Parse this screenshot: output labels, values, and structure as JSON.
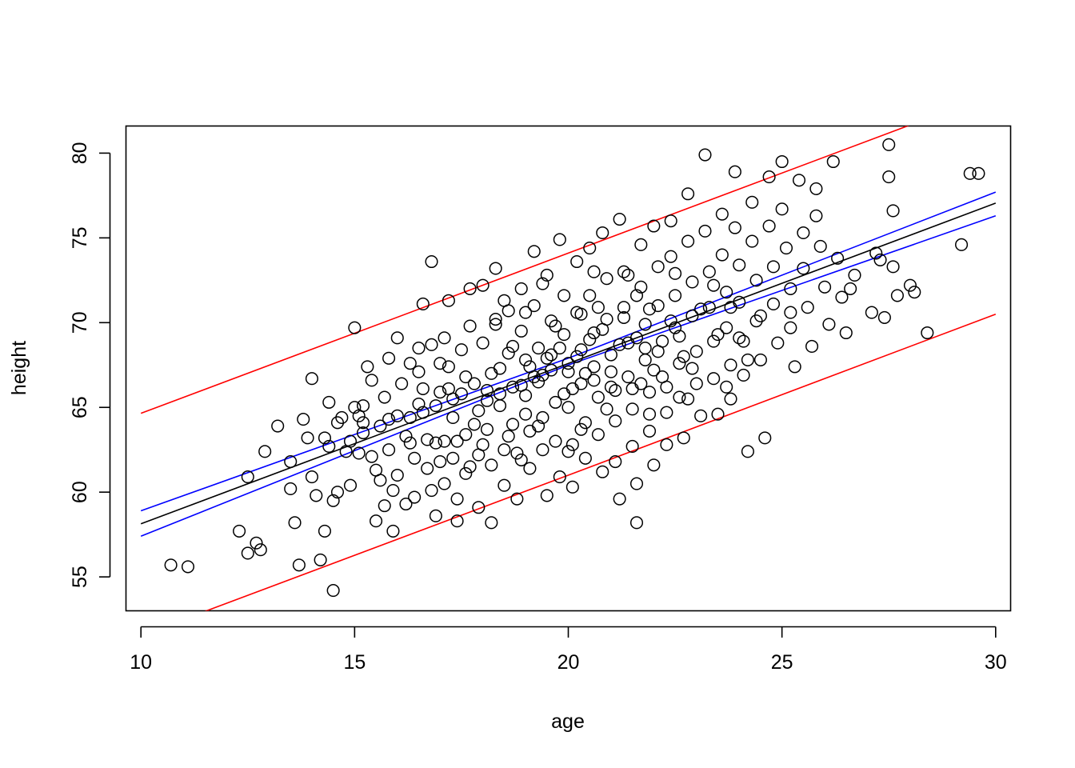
{
  "chart_data": {
    "type": "scatter",
    "title": "",
    "xlabel": "age",
    "ylabel": "height",
    "xlim": [
      9.65,
      30.35
    ],
    "ylim": [
      53.0,
      81.6
    ],
    "xticks": [
      10,
      15,
      20,
      25,
      30
    ],
    "yticks": [
      55,
      60,
      65,
      70,
      75,
      80
    ],
    "x_tick_labels": [
      "10",
      "15",
      "20",
      "25",
      "30"
    ],
    "y_tick_labels": [
      "55",
      "60",
      "65",
      "70",
      "75",
      "80"
    ],
    "grid": false,
    "legend": "none",
    "colors": {
      "points": "#000000",
      "fit": "#000000",
      "confidence": "#0000ff",
      "prediction": "#ff0000"
    },
    "fit_line": {
      "intercept": 48.67,
      "slope": 0.946,
      "color": "#000000"
    },
    "confidence_band": {
      "color": "#0000ff",
      "lower": [
        [
          10,
          57.4
        ],
        [
          20,
          67.5
        ],
        [
          30,
          76.3
        ]
      ],
      "upper": [
        [
          10,
          58.9
        ],
        [
          20,
          67.9
        ],
        [
          30,
          77.7
        ]
      ]
    },
    "prediction_band": {
      "color": "#ff0000",
      "lower": [
        [
          10,
          51.55
        ],
        [
          20,
          61.0
        ],
        [
          30,
          70.5
        ]
      ],
      "upper": [
        [
          10,
          64.65
        ],
        [
          20,
          74.1
        ],
        [
          30,
          83.55
        ]
      ]
    },
    "points": [
      [
        10.7,
        55.7
      ],
      [
        11.1,
        55.6
      ],
      [
        12.3,
        57.7
      ],
      [
        12.5,
        56.4
      ],
      [
        12.7,
        57.0
      ],
      [
        12.8,
        56.6
      ],
      [
        12.5,
        60.9
      ],
      [
        12.9,
        62.4
      ],
      [
        13.2,
        63.9
      ],
      [
        13.5,
        61.8
      ],
      [
        13.5,
        60.2
      ],
      [
        13.6,
        58.2
      ],
      [
        13.7,
        55.7
      ],
      [
        13.8,
        64.3
      ],
      [
        13.9,
        63.2
      ],
      [
        14.0,
        66.7
      ],
      [
        14.0,
        60.9
      ],
      [
        14.1,
        59.8
      ],
      [
        14.2,
        56.0
      ],
      [
        14.3,
        57.7
      ],
      [
        14.3,
        63.2
      ],
      [
        14.4,
        62.7
      ],
      [
        14.4,
        65.3
      ],
      [
        14.5,
        59.5
      ],
      [
        14.5,
        54.2
      ],
      [
        14.6,
        60.0
      ],
      [
        14.6,
        64.1
      ],
      [
        14.7,
        64.4
      ],
      [
        14.8,
        62.4
      ],
      [
        14.9,
        63.0
      ],
      [
        14.9,
        60.4
      ],
      [
        15.0,
        69.7
      ],
      [
        15.0,
        65.0
      ],
      [
        15.1,
        64.5
      ],
      [
        15.1,
        62.3
      ],
      [
        15.2,
        65.1
      ],
      [
        15.2,
        63.5
      ],
      [
        15.3,
        67.4
      ],
      [
        15.4,
        66.6
      ],
      [
        15.4,
        62.1
      ],
      [
        15.5,
        58.3
      ],
      [
        15.6,
        63.9
      ],
      [
        15.6,
        60.7
      ],
      [
        15.7,
        65.6
      ],
      [
        15.7,
        59.2
      ],
      [
        15.8,
        67.9
      ],
      [
        15.8,
        62.5
      ],
      [
        15.9,
        60.1
      ],
      [
        15.9,
        57.7
      ],
      [
        16.0,
        69.1
      ],
      [
        16.0,
        64.5
      ],
      [
        16.0,
        61.0
      ],
      [
        16.1,
        66.4
      ],
      [
        16.2,
        63.3
      ],
      [
        16.2,
        59.3
      ],
      [
        16.3,
        67.6
      ],
      [
        16.3,
        64.4
      ],
      [
        16.4,
        62.0
      ],
      [
        16.4,
        59.7
      ],
      [
        16.5,
        68.5
      ],
      [
        16.5,
        65.2
      ],
      [
        16.6,
        71.1
      ],
      [
        16.6,
        66.1
      ],
      [
        16.7,
        63.1
      ],
      [
        16.7,
        61.4
      ],
      [
        16.8,
        73.6
      ],
      [
        16.8,
        68.7
      ],
      [
        16.9,
        62.9
      ],
      [
        16.9,
        58.6
      ],
      [
        17.0,
        67.6
      ],
      [
        17.0,
        65.9
      ],
      [
        17.1,
        63.0
      ],
      [
        17.1,
        60.5
      ],
      [
        17.2,
        71.3
      ],
      [
        17.2,
        67.4
      ],
      [
        17.3,
        64.4
      ],
      [
        17.3,
        62.0
      ],
      [
        17.4,
        59.6
      ],
      [
        17.4,
        58.3
      ],
      [
        17.5,
        68.4
      ],
      [
        17.5,
        65.8
      ],
      [
        17.6,
        63.4
      ],
      [
        17.6,
        61.1
      ],
      [
        17.7,
        72.0
      ],
      [
        17.7,
        69.8
      ],
      [
        17.8,
        66.4
      ],
      [
        17.8,
        64.0
      ],
      [
        17.9,
        62.2
      ],
      [
        17.9,
        59.1
      ],
      [
        18.0,
        72.2
      ],
      [
        18.0,
        68.8
      ],
      [
        18.1,
        66.0
      ],
      [
        18.1,
        63.7
      ],
      [
        18.2,
        61.6
      ],
      [
        18.2,
        58.2
      ],
      [
        18.3,
        73.2
      ],
      [
        18.3,
        70.2
      ],
      [
        18.4,
        67.3
      ],
      [
        18.4,
        65.1
      ],
      [
        18.5,
        62.5
      ],
      [
        18.5,
        60.4
      ],
      [
        18.6,
        70.7
      ],
      [
        18.6,
        68.2
      ],
      [
        18.7,
        66.2
      ],
      [
        18.7,
        64.0
      ],
      [
        18.8,
        62.3
      ],
      [
        18.8,
        59.6
      ],
      [
        18.9,
        72.0
      ],
      [
        18.9,
        69.5
      ],
      [
        19.0,
        67.8
      ],
      [
        19.0,
        65.7
      ],
      [
        19.1,
        63.6
      ],
      [
        19.1,
        61.4
      ],
      [
        19.2,
        74.2
      ],
      [
        19.2,
        71.0
      ],
      [
        19.3,
        68.5
      ],
      [
        19.3,
        66.5
      ],
      [
        19.4,
        64.4
      ],
      [
        19.4,
        62.5
      ],
      [
        19.5,
        59.8
      ],
      [
        19.5,
        72.8
      ],
      [
        19.6,
        70.1
      ],
      [
        19.6,
        67.2
      ],
      [
        19.7,
        65.3
      ],
      [
        19.7,
        63.0
      ],
      [
        19.8,
        60.9
      ],
      [
        19.8,
        74.9
      ],
      [
        19.9,
        71.6
      ],
      [
        19.9,
        69.3
      ],
      [
        20.0,
        67.1
      ],
      [
        20.0,
        65.0
      ],
      [
        20.1,
        62.8
      ],
      [
        20.1,
        60.3
      ],
      [
        20.2,
        73.6
      ],
      [
        20.2,
        70.6
      ],
      [
        20.3,
        68.4
      ],
      [
        20.3,
        66.4
      ],
      [
        20.4,
        64.1
      ],
      [
        20.4,
        62.0
      ],
      [
        20.5,
        74.4
      ],
      [
        20.5,
        71.6
      ],
      [
        20.6,
        69.4
      ],
      [
        20.6,
        67.4
      ],
      [
        20.7,
        65.6
      ],
      [
        20.7,
        63.4
      ],
      [
        20.8,
        61.2
      ],
      [
        20.8,
        75.3
      ],
      [
        20.9,
        72.6
      ],
      [
        20.9,
        70.2
      ],
      [
        21.0,
        68.1
      ],
      [
        21.0,
        66.2
      ],
      [
        21.1,
        64.2
      ],
      [
        21.1,
        61.8
      ],
      [
        21.2,
        59.6
      ],
      [
        21.2,
        76.1
      ],
      [
        21.3,
        73.0
      ],
      [
        21.3,
        70.9
      ],
      [
        21.4,
        68.8
      ],
      [
        21.4,
        66.8
      ],
      [
        21.5,
        64.9
      ],
      [
        21.5,
        62.7
      ],
      [
        21.6,
        60.5
      ],
      [
        21.6,
        58.2
      ],
      [
        21.7,
        74.6
      ],
      [
        21.7,
        72.1
      ],
      [
        21.8,
        69.9
      ],
      [
        21.8,
        67.8
      ],
      [
        21.9,
        65.9
      ],
      [
        21.9,
        63.6
      ],
      [
        22.0,
        61.6
      ],
      [
        22.0,
        75.7
      ],
      [
        22.1,
        73.3
      ],
      [
        22.1,
        71.0
      ],
      [
        22.2,
        68.9
      ],
      [
        22.2,
        66.8
      ],
      [
        22.3,
        64.7
      ],
      [
        22.3,
        62.8
      ],
      [
        22.4,
        76.0
      ],
      [
        22.4,
        73.9
      ],
      [
        22.5,
        71.6
      ],
      [
        22.5,
        69.7
      ],
      [
        22.6,
        67.6
      ],
      [
        22.6,
        65.6
      ],
      [
        22.7,
        63.2
      ],
      [
        22.8,
        77.6
      ],
      [
        22.8,
        74.8
      ],
      [
        22.9,
        72.4
      ],
      [
        22.9,
        70.4
      ],
      [
        23.0,
        68.3
      ],
      [
        23.0,
        66.4
      ],
      [
        23.1,
        64.5
      ],
      [
        23.2,
        79.9
      ],
      [
        23.2,
        75.4
      ],
      [
        23.3,
        73.0
      ],
      [
        23.3,
        70.9
      ],
      [
        23.4,
        68.9
      ],
      [
        23.4,
        66.7
      ],
      [
        23.5,
        64.6
      ],
      [
        23.6,
        76.4
      ],
      [
        23.6,
        74.0
      ],
      [
        23.7,
        71.8
      ],
      [
        23.7,
        69.7
      ],
      [
        23.8,
        67.5
      ],
      [
        23.8,
        65.5
      ],
      [
        23.9,
        78.9
      ],
      [
        23.9,
        75.6
      ],
      [
        24.0,
        73.4
      ],
      [
        24.0,
        71.2
      ],
      [
        24.1,
        68.9
      ],
      [
        24.1,
        66.9
      ],
      [
        24.2,
        62.4
      ],
      [
        24.3,
        77.1
      ],
      [
        24.3,
        74.8
      ],
      [
        24.4,
        72.5
      ],
      [
        24.4,
        70.1
      ],
      [
        24.5,
        67.8
      ],
      [
        24.6,
        63.2
      ],
      [
        24.7,
        78.6
      ],
      [
        24.7,
        75.7
      ],
      [
        24.8,
        73.3
      ],
      [
        24.8,
        71.1
      ],
      [
        24.9,
        68.8
      ],
      [
        25.0,
        79.5
      ],
      [
        25.0,
        76.7
      ],
      [
        25.1,
        74.4
      ],
      [
        25.2,
        72.0
      ],
      [
        25.2,
        69.7
      ],
      [
        25.3,
        67.4
      ],
      [
        25.4,
        78.4
      ],
      [
        25.5,
        75.3
      ],
      [
        25.5,
        73.2
      ],
      [
        25.6,
        70.9
      ],
      [
        25.7,
        68.6
      ],
      [
        25.8,
        77.9
      ],
      [
        25.8,
        76.3
      ],
      [
        25.9,
        74.5
      ],
      [
        26.0,
        72.1
      ],
      [
        26.1,
        69.9
      ],
      [
        26.2,
        79.5
      ],
      [
        26.3,
        73.8
      ],
      [
        26.4,
        71.5
      ],
      [
        26.5,
        69.4
      ],
      [
        26.6,
        72.0
      ],
      [
        26.7,
        72.8
      ],
      [
        27.1,
        70.6
      ],
      [
        27.2,
        74.1
      ],
      [
        27.3,
        73.7
      ],
      [
        27.4,
        70.3
      ],
      [
        27.5,
        80.5
      ],
      [
        27.5,
        78.6
      ],
      [
        27.6,
        76.6
      ],
      [
        27.6,
        73.3
      ],
      [
        27.7,
        71.6
      ],
      [
        28.0,
        72.2
      ],
      [
        28.1,
        71.8
      ],
      [
        28.4,
        69.4
      ],
      [
        29.2,
        74.6
      ],
      [
        29.4,
        78.8
      ],
      [
        29.6,
        78.8
      ],
      [
        20.0,
        67.6
      ],
      [
        20.2,
        68.0
      ],
      [
        19.4,
        66.9
      ],
      [
        19.8,
        68.5
      ],
      [
        20.4,
        67.0
      ],
      [
        21.2,
        68.7
      ],
      [
        18.9,
        66.3
      ],
      [
        19.1,
        67.4
      ],
      [
        20.6,
        66.6
      ],
      [
        21.6,
        69.1
      ],
      [
        18.4,
        65.8
      ],
      [
        19.6,
        68.1
      ],
      [
        20.8,
        69.6
      ],
      [
        22.1,
        68.3
      ],
      [
        17.9,
        64.8
      ],
      [
        20.1,
        66.1
      ],
      [
        21.0,
        67.1
      ],
      [
        22.4,
        70.1
      ],
      [
        17.6,
        66.8
      ],
      [
        19.3,
        63.9
      ],
      [
        21.9,
        70.8
      ],
      [
        18.2,
        67.0
      ],
      [
        20.5,
        69.0
      ],
      [
        21.5,
        66.1
      ],
      [
        16.9,
        65.1
      ],
      [
        22.6,
        69.2
      ],
      [
        19.0,
        64.6
      ],
      [
        20.9,
        64.9
      ],
      [
        18.7,
        68.6
      ],
      [
        21.3,
        70.3
      ],
      [
        17.4,
        63.0
      ],
      [
        19.9,
        65.8
      ],
      [
        22.0,
        67.2
      ],
      [
        18.1,
        65.4
      ],
      [
        20.3,
        70.5
      ],
      [
        21.8,
        68.5
      ],
      [
        23.1,
        70.8
      ],
      [
        16.6,
        64.7
      ],
      [
        19.5,
        67.9
      ],
      [
        21.1,
        66.0
      ],
      [
        17.2,
        66.1
      ],
      [
        22.3,
        66.2
      ],
      [
        18.6,
        63.3
      ],
      [
        20.7,
        70.9
      ],
      [
        23.5,
        69.3
      ],
      [
        17.0,
        61.8
      ],
      [
        19.7,
        69.8
      ],
      [
        21.7,
        66.4
      ],
      [
        18.3,
        69.9
      ],
      [
        22.7,
        68.0
      ],
      [
        16.3,
        62.9
      ],
      [
        20.0,
        62.4
      ],
      [
        23.8,
        70.9
      ],
      [
        15.8,
        64.3
      ],
      [
        19.2,
        66.8
      ],
      [
        22.9,
        67.3
      ],
      [
        18.9,
        61.9
      ],
      [
        21.4,
        72.8
      ],
      [
        17.1,
        69.1
      ],
      [
        24.0,
        69.1
      ],
      [
        16.5,
        67.1
      ],
      [
        20.6,
        73.0
      ],
      [
        18.0,
        62.8
      ],
      [
        23.4,
        72.2
      ],
      [
        15.5,
        61.3
      ],
      [
        21.9,
        64.6
      ],
      [
        19.4,
        72.3
      ],
      [
        24.5,
        70.4
      ],
      [
        17.7,
        61.5
      ],
      [
        22.5,
        72.9
      ],
      [
        16.8,
        60.1
      ],
      [
        20.3,
        63.7
      ],
      [
        25.2,
        70.6
      ],
      [
        19.0,
        70.6
      ],
      [
        23.7,
        66.2
      ],
      [
        15.2,
        64.1
      ],
      [
        21.6,
        71.6
      ],
      [
        18.5,
        71.3
      ],
      [
        24.2,
        67.8
      ],
      [
        17.3,
        65.5
      ],
      [
        22.8,
        65.5
      ]
    ]
  }
}
